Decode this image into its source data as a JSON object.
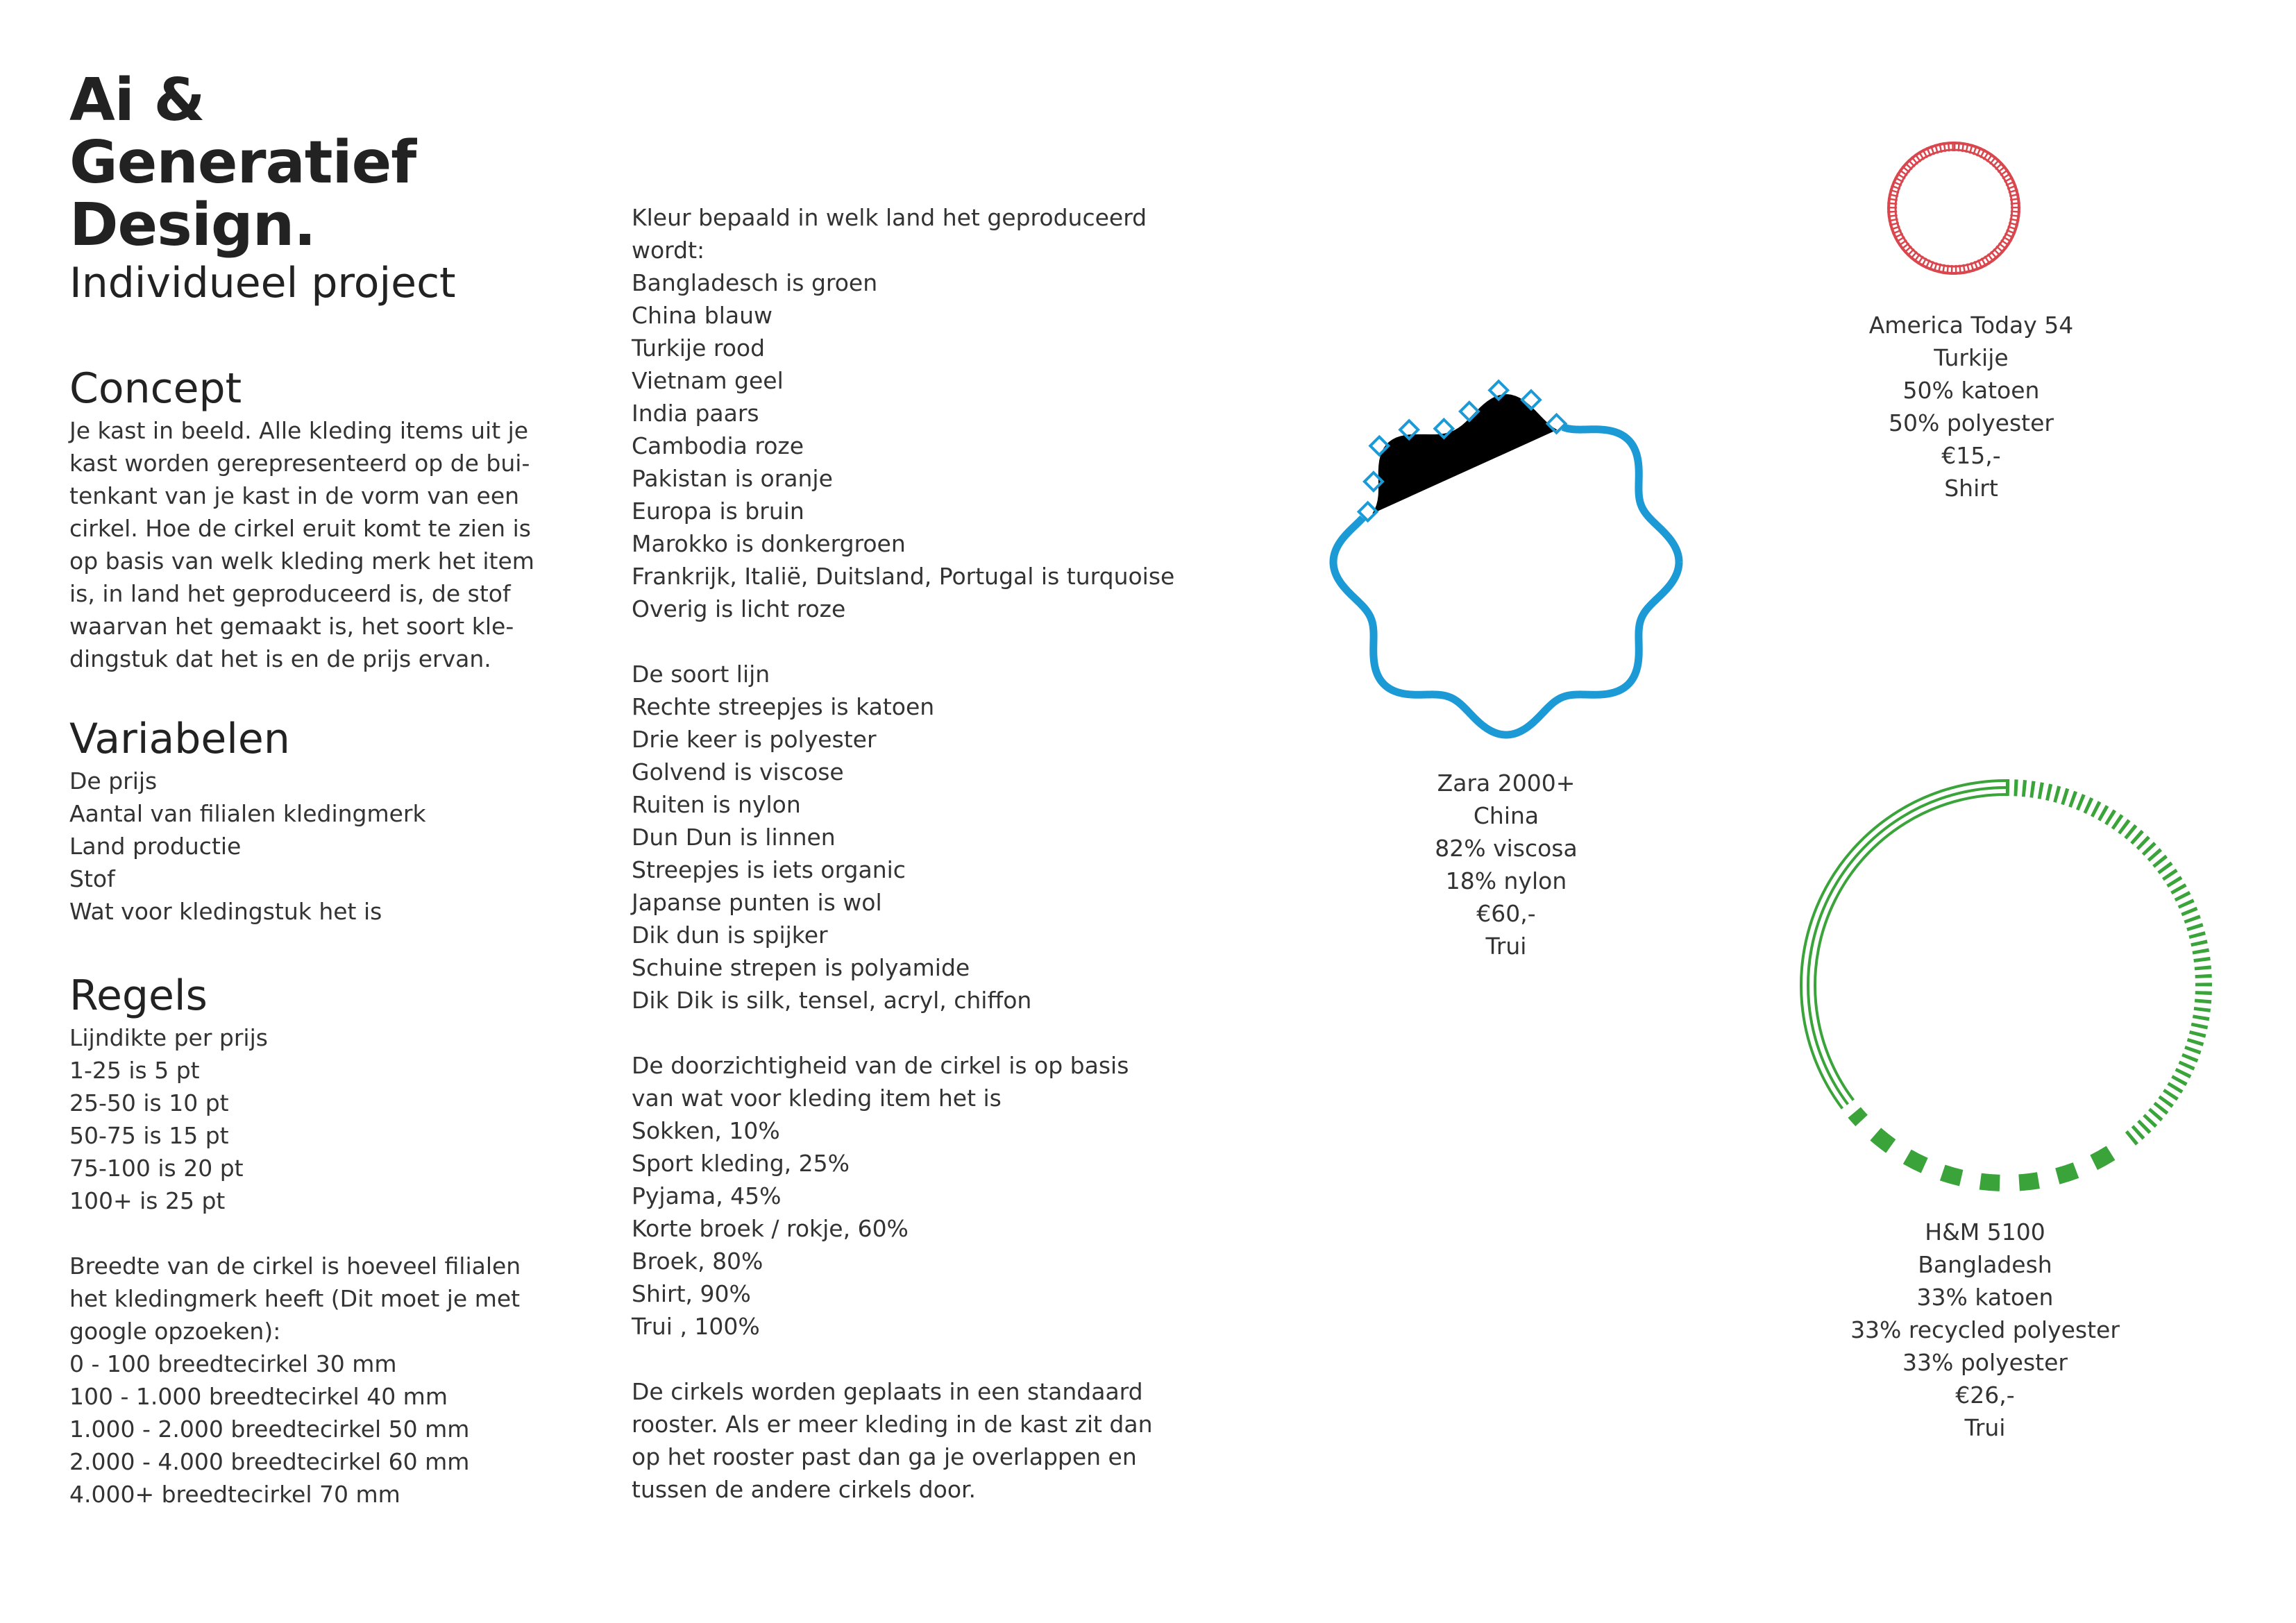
{
  "title": {
    "line1": "Ai &",
    "line2": "Generatief",
    "line3": "Design."
  },
  "subtitle": "Individueel project",
  "concept": {
    "heading": "Concept",
    "lines": [
      "Je kast in beeld. Alle kleding items uit je",
      "kast worden gerepresenteerd op de bui-",
      "tenkant van je kast in de vorm van een",
      "cirkel. Hoe de cirkel eruit komt te zien is",
      "op basis van welk kleding merk het item",
      "is, in land het geproduceerd is, de stof",
      "waarvan het gemaakt is, het soort kle-",
      "dingstuk dat het is en de prijs ervan."
    ]
  },
  "variabelen": {
    "heading": "Variabelen",
    "lines": [
      "De prijs",
      "Aantal van filialen kledingmerk",
      "Land productie",
      "Stof",
      "Wat voor kledingstuk het is"
    ]
  },
  "regels": {
    "heading": "Regels",
    "lines": [
      "Lijndikte per prijs",
      "1-25 is 5 pt",
      "25-50 is 10 pt",
      "50-75 is 15 pt",
      "75-100 is 20 pt",
      "100+ is 25 pt",
      "",
      "Breedte van de cirkel is hoeveel filialen",
      "het kledingmerk heeft (Dit moet je met",
      "google opzoeken):",
      "0 - 100 breedtecirkel  30 mm",
      "100 - 1.000 breedtecirkel  40 mm",
      "1.000 - 2.000 breedtecirkel  50 mm",
      "2.000 - 4.000 breedtecirkel  60 mm",
      "4.000+ breedtecirkel  70 mm"
    ]
  },
  "rules_column": {
    "lines": [
      "Kleur bepaald in welk land het geproduceerd",
      "wordt:",
      "Bangladesch is groen",
      "China blauw",
      "Turkije rood",
      "Vietnam geel",
      "India paars",
      "Cambodia roze",
      "Pakistan is oranje",
      "Europa is bruin",
      "Marokko is donkergroen",
      "Frankrijk, Italië, Duitsland, Portugal is turquoise",
      "Overig is licht roze",
      "",
      "De soort lijn",
      "Rechte streepjes is katoen",
      "Drie keer is polyester",
      "Golvend is viscose",
      "Ruiten is nylon",
      "Dun Dun is linnen",
      "Streepjes is iets organic",
      "Japanse punten is wol",
      "Dik dun is spijker",
      "Schuine strepen is polyamide",
      "Dik Dik is silk, tensel, acryl, chiffon",
      "",
      "De doorzichtigheid van de cirkel is op basis",
      "van wat voor kleding item het is",
      "Sokken,  10%",
      "Sport kleding, 25%",
      "Pyjama, 45%",
      "Korte broek / rokje, 60%",
      "Broek, 80%",
      "Shirt, 90%",
      "Trui , 100%",
      "",
      "De cirkels worden geplaats in een standaard",
      "rooster. Als er meer kleding in de kast zit dan",
      "op het rooster past dan ga je overlappen en",
      "tussen de andere cirkels door."
    ]
  },
  "examples": {
    "america_today": {
      "lines": [
        "America Today 54",
        "Turkije",
        "50% katoen",
        "50% polyester",
        "€15,-",
        "Shirt"
      ],
      "color": "#d9464d"
    },
    "zara": {
      "lines": [
        "Zara 2000+",
        "China",
        "82% viscosa",
        "18% nylon",
        "€60,-",
        "Trui"
      ],
      "color": "#1b9ad6"
    },
    "hm": {
      "lines": [
        "H&M 5100",
        "Bangladesh",
        "33% katoen",
        "33% recycled polyester",
        "33% polyester",
        "€26,-",
        "Trui"
      ],
      "color": "#3aa33a"
    }
  },
  "icons": {
    "america_today": "red-striped-ring-icon",
    "zara": "blue-wavy-ring-icon",
    "hm": "green-dashed-ring-icon"
  }
}
